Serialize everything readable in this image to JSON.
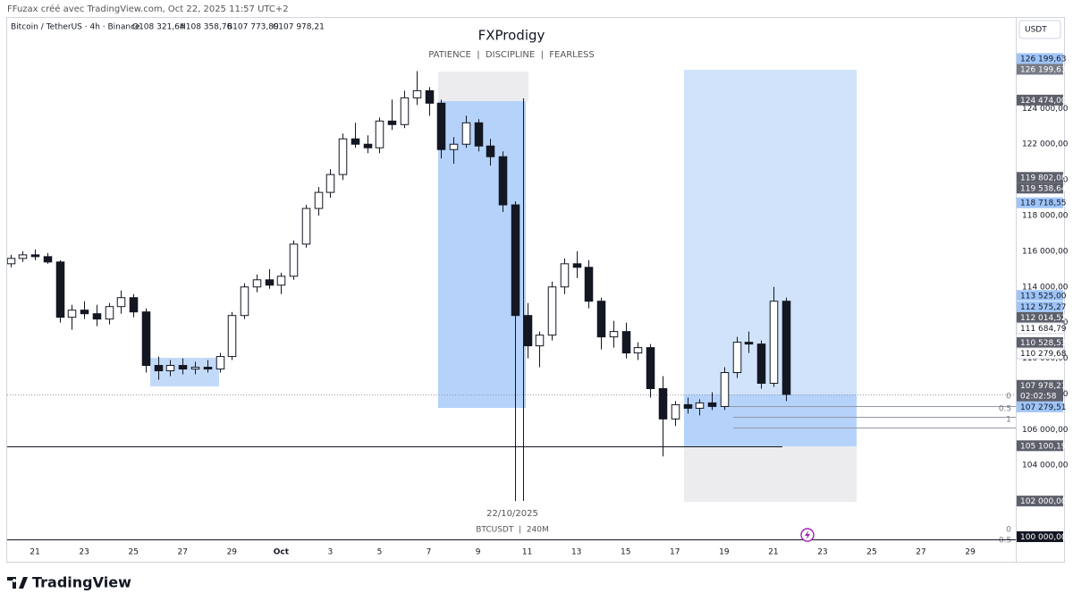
{
  "header": {
    "credit": "FFuzax créé avec TradingView.com, Oct 22, 2025 11:57 UTC+2",
    "symbol": "Bitcoin / TetherUS · 4h · Binance",
    "ohlc": [
      "O108 321,64",
      "H108 358,76",
      "B107 773,89",
      "C107 978,21"
    ],
    "currency": "USDT"
  },
  "footer": {
    "logo": "TradingView"
  },
  "chart_data": {
    "type": "candlestick",
    "title": "FXProdigy",
    "subtitle": "PATIENCE  |  DISCIPLINE  |  FEARLESS",
    "up_color": "#ffffff",
    "down_color": "#131722",
    "border_color": "#131722",
    "grid": false,
    "x": [
      20,
      20.5,
      21,
      21.5,
      22,
      22.5,
      23,
      23.5,
      24,
      24.5,
      25,
      25.5,
      26,
      26.5,
      27,
      27.5,
      28,
      28.5,
      29,
      29.5,
      30,
      30.5,
      31,
      31.5,
      32,
      32.5,
      33,
      33.5,
      34,
      34.5,
      35,
      35.5,
      36,
      36.5,
      37,
      37.5,
      38,
      38.5,
      39,
      39.5,
      40,
      40.5,
      41,
      41.5,
      42,
      42.5,
      43,
      43.5,
      44,
      44.5,
      45,
      45.5,
      46,
      46.5,
      47,
      47.5,
      48,
      48.5,
      49,
      49.5,
      50,
      50.5,
      51,
      51.5
    ],
    "open": [
      115300,
      115600,
      115800,
      115700,
      115400,
      112300,
      112700,
      112500,
      112200,
      112900,
      113400,
      112600,
      109600,
      109300,
      109600,
      109400,
      109500,
      109400,
      110100,
      112400,
      114000,
      114400,
      114100,
      114600,
      116400,
      118400,
      119300,
      120300,
      122300,
      122000,
      121800,
      123300,
      123100,
      124600,
      125000,
      124300,
      121700,
      122000,
      123200,
      121900,
      121300,
      118600,
      112400,
      110700,
      111300,
      114000,
      115300,
      115100,
      113200,
      111200,
      111500,
      110300,
      110600,
      108300,
      106600,
      107400,
      107200,
      107500,
      107300,
      109200,
      110900,
      110800,
      108600,
      113200
    ],
    "high": [
      115800,
      116000,
      116100,
      115900,
      115500,
      113000,
      113200,
      113000,
      113100,
      113800,
      113600,
      112800,
      110100,
      109900,
      110000,
      109800,
      109900,
      110300,
      112600,
      114200,
      114700,
      115000,
      114800,
      116600,
      118600,
      119600,
      120600,
      122600,
      123200,
      122500,
      123500,
      124500,
      125000,
      126100,
      125200,
      124500,
      122400,
      123600,
      123400,
      122300,
      121600,
      118800,
      113100,
      111500,
      114300,
      115600,
      116000,
      115500,
      113400,
      112100,
      112000,
      110900,
      110800,
      109000,
      107600,
      107800,
      107700,
      108100,
      109500,
      111200,
      111500,
      111000,
      114000,
      113400
    ],
    "low": [
      115100,
      115400,
      115500,
      115300,
      112000,
      111600,
      112200,
      111800,
      111900,
      112500,
      112300,
      109200,
      108800,
      109000,
      109100,
      109100,
      109200,
      109200,
      109900,
      112200,
      113700,
      113900,
      113600,
      114400,
      116200,
      118000,
      119000,
      120000,
      121800,
      121500,
      121500,
      122800,
      122900,
      124200,
      123600,
      121200,
      120900,
      121800,
      121600,
      120800,
      118200,
      102000,
      110000,
      109500,
      111000,
      113600,
      114500,
      112800,
      110500,
      110600,
      110000,
      109900,
      107800,
      104500,
      106200,
      106900,
      106800,
      107100,
      107100,
      108900,
      110300,
      108300,
      108400,
      107600
    ],
    "close": [
      115600,
      115800,
      115700,
      115400,
      112300,
      112700,
      112500,
      112200,
      112900,
      113400,
      112600,
      109600,
      109300,
      109600,
      109400,
      109500,
      109400,
      110100,
      112400,
      114000,
      114400,
      114100,
      114600,
      116400,
      118400,
      119300,
      120300,
      122300,
      122000,
      121800,
      123300,
      123100,
      124600,
      125000,
      124300,
      121700,
      122000,
      123200,
      121900,
      121300,
      118600,
      112400,
      110700,
      111300,
      114000,
      115300,
      115100,
      113200,
      111200,
      111500,
      110300,
      110600,
      108300,
      106600,
      107400,
      107200,
      107500,
      107300,
      109200,
      110900,
      110800,
      108600,
      113200,
      107978.21
    ],
    "xlim": [
      19.87,
      60.85
    ],
    "xticks": [
      21,
      23,
      25,
      27,
      29,
      {
        "value": 31,
        "label": "Oct"
      },
      {
        "value": 33,
        "label": "3"
      },
      {
        "value": 35,
        "label": "5"
      },
      {
        "value": 37,
        "label": "7"
      },
      {
        "value": 39,
        "label": "9"
      },
      {
        "value": 41,
        "label": "11"
      },
      {
        "value": 43,
        "label": "13"
      },
      {
        "value": 45,
        "label": "15"
      },
      {
        "value": 47,
        "label": "17"
      },
      {
        "value": 49,
        "label": "19"
      },
      {
        "value": 51,
        "label": "21"
      },
      {
        "value": 53,
        "label": "23"
      },
      {
        "value": 55,
        "label": "25"
      },
      {
        "value": 57,
        "label": "27"
      },
      {
        "value": 59,
        "label": "29"
      }
    ],
    "ylim": [
      99850,
      128981
    ],
    "yticks": [
      {
        "value": 104000,
        "label": "104 000,00"
      },
      {
        "value": 106000,
        "label": "106 000,00"
      },
      {
        "value": 108000,
        "label": "108 000,00"
      },
      {
        "value": 110000,
        "label": "110 000,00"
      },
      {
        "value": 112000,
        "label": "112 000,00"
      },
      {
        "value": 114000,
        "label": "114 000,00"
      },
      {
        "value": 116000,
        "label": "116 000,00"
      },
      {
        "value": 118000,
        "label": "118 000,00"
      },
      {
        "value": 120000,
        "label": "120 000,00"
      },
      {
        "value": 122000,
        "label": "122 000,00"
      },
      {
        "value": 124000,
        "label": "124 000,00"
      }
    ],
    "price_labels": [
      {
        "value": 126199.63,
        "label": "126 199,63",
        "color": "#9fc5f8"
      },
      {
        "value": 126199.63,
        "label": "126 199,63",
        "color": "#787b86"
      },
      {
        "value": 124474,
        "label": "124 474,00",
        "color": "#5d606b"
      },
      {
        "value": 119802.08,
        "label": "119 802,08",
        "color": "#5d606b"
      },
      {
        "value": 119538.64,
        "label": "119 538,64",
        "color": "#5d606b"
      },
      {
        "value": 118718.55,
        "label": "118 718,55",
        "color": "#9fc5f8"
      },
      {
        "value": 113525,
        "label": "113 525,00",
        "color": "#9fc5f8"
      },
      {
        "value": 112575.27,
        "label": "112 575,27",
        "color": "#9fc5f8"
      },
      {
        "value": 112014.52,
        "label": "112 014,52",
        "color": "#5d606b"
      },
      {
        "value": 111684.79,
        "label": "111 684,79",
        "color": "#ffffff"
      },
      {
        "value": 110528.53,
        "label": "110 528,53",
        "color": "#5d606b"
      },
      {
        "value": 110279.68,
        "label": "110 279,68",
        "color": "#ffffff"
      },
      {
        "value": 107978.21,
        "label": "107 978,21",
        "color": "#5d606b",
        "sub": "02:02:58"
      },
      {
        "value": 107279.51,
        "label": "107 279,51",
        "color": "#9fc5f8"
      },
      {
        "value": 105100.19,
        "label": "105 100,19",
        "color": "#5d606b"
      },
      {
        "value": 102000,
        "label": "102 000,00",
        "color": "#5d606b"
      },
      {
        "value": 100000,
        "label": "100 000,00",
        "color": "#131722"
      }
    ],
    "drawing_labels": [
      "0",
      "0.5",
      "1",
      "0",
      "0.5"
    ],
    "cursor_date": "22/10/2025",
    "cursor_symbol": "BTCUSDT  |  240M"
  }
}
